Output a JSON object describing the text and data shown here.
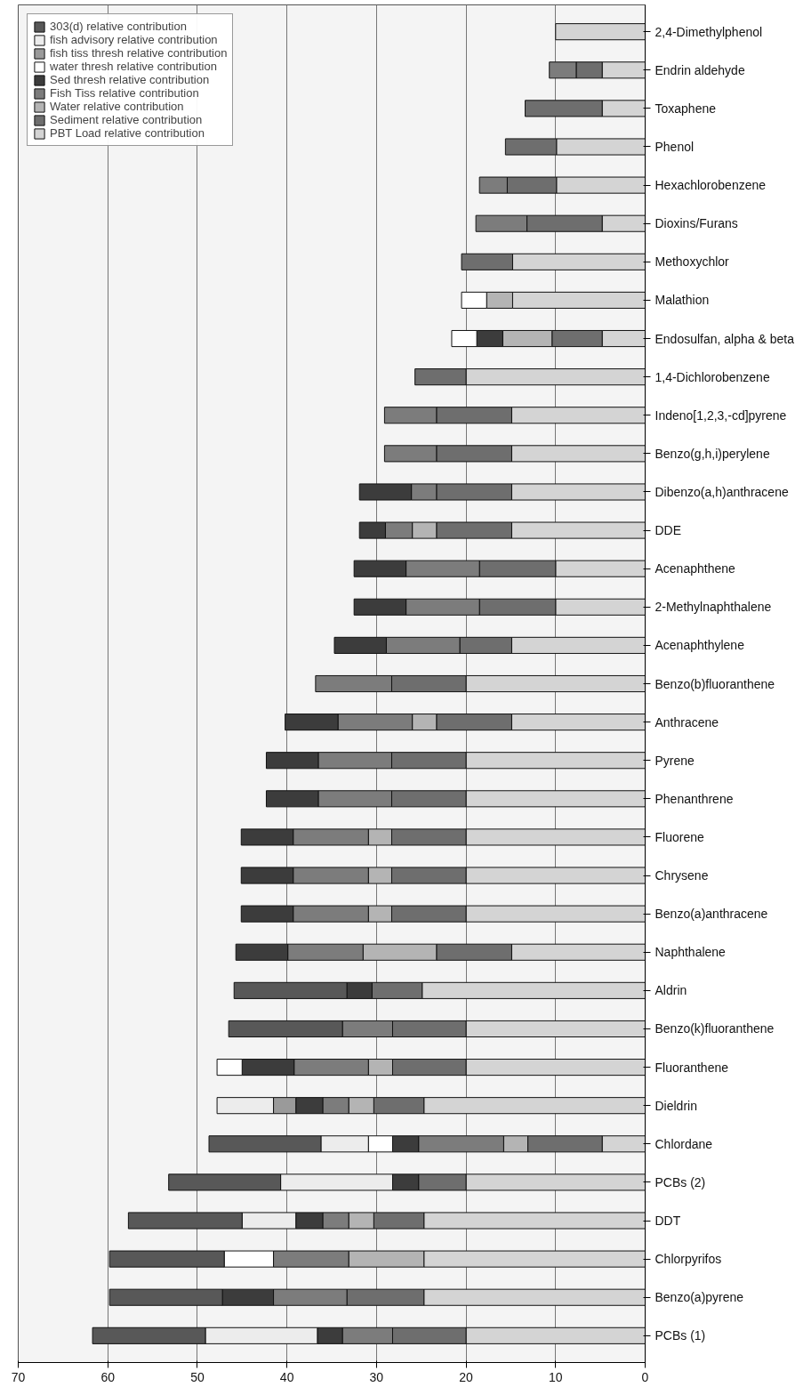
{
  "chart_data": {
    "type": "bar",
    "orientation": "horizontal",
    "stacked": true,
    "categories": [
      "2,4-Dimethylphenol",
      "Endrin aldehyde",
      "Toxaphene",
      "Phenol",
      "Hexachlorobenzene",
      "Dioxins/Furans",
      "Methoxychlor",
      "Malathion",
      "Endosulfan, alpha & beta",
      "1,4-Dichlorobenzene",
      "Indeno[1,2,3,-cd]pyrene",
      "Benzo(g,h,i)perylene",
      "Dibenzo(a,h)anthracene",
      "DDE",
      "Acenaphthene",
      "2-Methylnaphthalene",
      "Acenaphthylene",
      "Benzo(b)fluoranthene",
      "Anthracene",
      "Pyrene",
      "Phenanthrene",
      "Fluorene",
      "Chrysene",
      "Benzo(a)anthracene",
      "Naphthalene",
      "Aldrin",
      "Benzo(k)fluoranthene",
      "Fluoranthene",
      "Dieldrin",
      "Chlordane",
      "PCBs (2)",
      "DDT",
      "Chlorpyrifos",
      "Benzo(a)pyrene",
      "PCBs (1)"
    ],
    "series": [
      {
        "name": "PBT Load relative contribution",
        "color": "#d4d4d4",
        "values": [
          10,
          4.8,
          4.8,
          9.9,
          9.9,
          4.8,
          14.8,
          14.8,
          4.8,
          20,
          14.9,
          14.9,
          14.9,
          14.9,
          10,
          10,
          14.9,
          20,
          14.9,
          20,
          20,
          20,
          20,
          20,
          14.9,
          24.9,
          20,
          20,
          24.7,
          4.8,
          20,
          24.7,
          24.7,
          24.7,
          20
        ]
      },
      {
        "name": "Sediment relative contribution",
        "color": "#6e6e6e",
        "values": [
          null,
          2.9,
          8.6,
          5.7,
          5.5,
          8.4,
          5.7,
          null,
          5.6,
          5.7,
          8.4,
          8.4,
          8.4,
          8.4,
          8.5,
          8.5,
          5.8,
          8.3,
          8.4,
          8.3,
          8.3,
          8.3,
          8.3,
          8.3,
          8.4,
          5.6,
          8.2,
          8.2,
          5.6,
          8.3,
          5.3,
          5.6,
          null,
          8.6,
          8.2
        ]
      },
      {
        "name": "Water relative contribution",
        "color": "#b4b4b4",
        "values": [
          null,
          null,
          null,
          null,
          null,
          null,
          null,
          2.9,
          5.5,
          null,
          null,
          null,
          null,
          2.7,
          null,
          null,
          null,
          null,
          2.7,
          null,
          null,
          2.6,
          2.6,
          2.6,
          8.2,
          null,
          null,
          2.7,
          2.8,
          2.7,
          null,
          2.8,
          8.4,
          null,
          null
        ]
      },
      {
        "name": "Fish Tiss relative contribution",
        "color": "#7c7c7c",
        "values": [
          null,
          3.0,
          null,
          null,
          3.1,
          5.7,
          null,
          null,
          null,
          null,
          5.8,
          5.8,
          2.8,
          3.0,
          8.2,
          8.2,
          8.2,
          8.5,
          8.3,
          8.2,
          8.2,
          8.4,
          8.4,
          8.4,
          8.4,
          null,
          5.6,
          8.3,
          2.9,
          9.5,
          null,
          2.9,
          8.4,
          8.2,
          5.6
        ]
      },
      {
        "name": "Sed thresh relative contribution",
        "color": "#3c3c3c",
        "values": [
          null,
          null,
          null,
          null,
          null,
          null,
          null,
          null,
          2.9,
          null,
          null,
          null,
          5.8,
          2.9,
          5.8,
          5.8,
          5.8,
          null,
          5.9,
          5.8,
          5.8,
          5.8,
          5.8,
          5.8,
          5.8,
          2.8,
          null,
          5.8,
          3.0,
          2.9,
          2.9,
          3.0,
          null,
          5.7,
          2.8
        ]
      },
      {
        "name": "water thresh relative contribution",
        "color": "#ffffff",
        "values": [
          null,
          null,
          null,
          null,
          null,
          null,
          null,
          2.8,
          2.8,
          null,
          null,
          null,
          null,
          null,
          null,
          null,
          null,
          null,
          null,
          null,
          null,
          null,
          null,
          null,
          null,
          null,
          null,
          2.8,
          null,
          2.7,
          null,
          null,
          5.5,
          null,
          null
        ]
      },
      {
        "name": "fish tiss thresh relative contribution",
        "color": "#9a9a9a",
        "values": [
          null,
          null,
          null,
          null,
          null,
          null,
          null,
          null,
          null,
          null,
          null,
          null,
          null,
          null,
          null,
          null,
          null,
          null,
          null,
          null,
          null,
          null,
          null,
          null,
          null,
          null,
          null,
          null,
          2.5,
          null,
          null,
          null,
          null,
          null,
          null
        ]
      },
      {
        "name": "fish advisory relative contribution",
        "color": "#ececec",
        "values": [
          null,
          null,
          null,
          null,
          null,
          null,
          null,
          null,
          null,
          null,
          null,
          null,
          null,
          null,
          null,
          null,
          null,
          null,
          null,
          null,
          null,
          null,
          null,
          null,
          null,
          null,
          null,
          null,
          6.3,
          5.3,
          12.5,
          6.0,
          null,
          null,
          12.5
        ]
      },
      {
        "name": "303(d) relative contribution",
        "color": "#585858",
        "values": [
          null,
          null,
          null,
          null,
          null,
          null,
          null,
          null,
          null,
          null,
          null,
          null,
          null,
          null,
          null,
          null,
          null,
          null,
          null,
          null,
          null,
          null,
          null,
          null,
          null,
          12.6,
          12.7,
          null,
          null,
          12.5,
          12.5,
          12.7,
          12.8,
          12.6,
          12.6
        ]
      }
    ],
    "xlim": [
      70,
      0
    ],
    "xticks": [
      0,
      10,
      20,
      30,
      40,
      50,
      60,
      70
    ],
    "grid": "x",
    "legend": "top left"
  }
}
